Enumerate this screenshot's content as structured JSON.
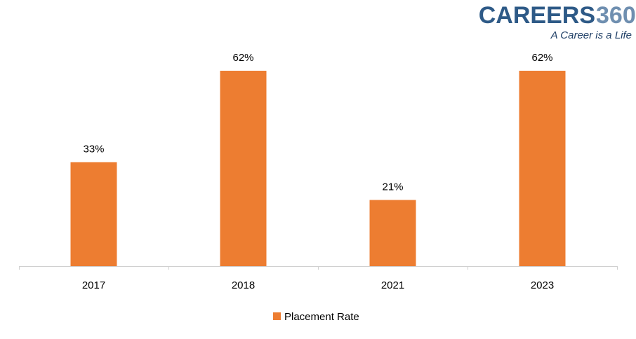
{
  "logo": {
    "brand_main": "CAREERS",
    "brand_num": "360",
    "tagline": "A Career is a Life",
    "colors": {
      "main": "#2e5a87",
      "num": "#6f8fb0",
      "tagline": "#1f3f66"
    }
  },
  "chart_data": {
    "type": "bar",
    "categories": [
      "2017",
      "2018",
      "2021",
      "2023"
    ],
    "series": [
      {
        "name": "Placement Rate",
        "values": [
          33,
          62,
          21,
          62
        ],
        "color": "#ed7d31"
      }
    ],
    "data_labels": [
      "33%",
      "62%",
      "21%",
      "62%"
    ],
    "title": "",
    "xlabel": "",
    "ylabel": "",
    "ylim": [
      0,
      62
    ],
    "grid": false,
    "legend_position": "bottom"
  }
}
